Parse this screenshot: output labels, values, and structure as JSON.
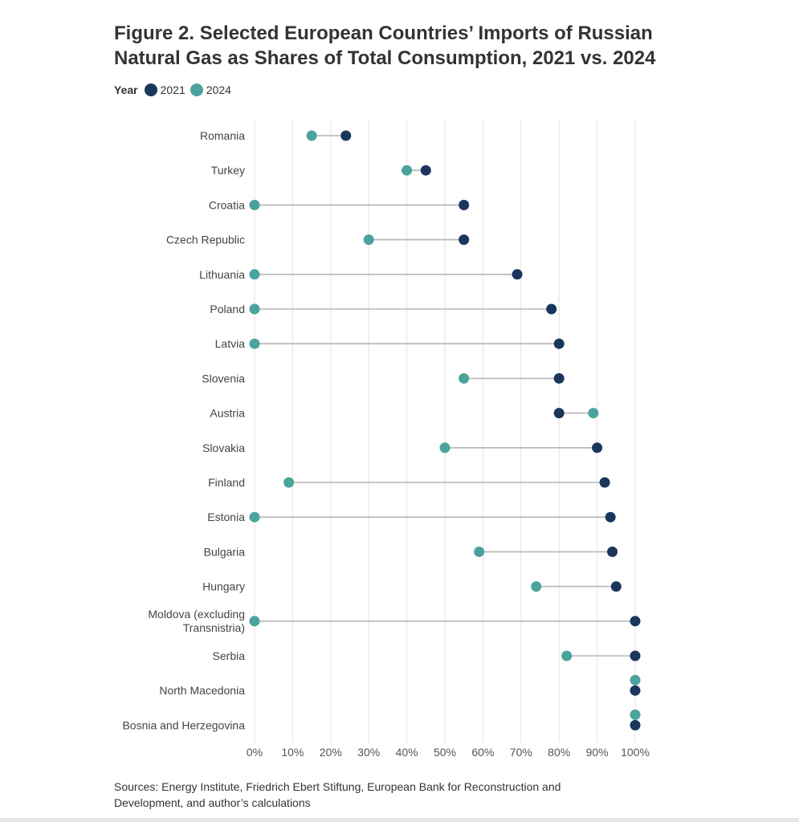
{
  "title_lines": [
    "Figure 2. Selected European Countries’ Imports of Russian",
    "Natural Gas as Shares of Total Consumption, 2021 vs. 2024"
  ],
  "legend": {
    "title": "Year",
    "items": [
      {
        "label": "2021",
        "color": "#1a365d"
      },
      {
        "label": "2024",
        "color": "#4aa39c"
      }
    ]
  },
  "chart_data": {
    "type": "dumbbell",
    "title": "Figure 2. Selected European Countries’ Imports of Russian Natural Gas as Shares of Total Consumption, 2021 vs. 2024",
    "xlabel": "",
    "ylabel": "",
    "xlim": [
      0,
      100
    ],
    "x_ticks": [
      0,
      10,
      20,
      30,
      40,
      50,
      60,
      70,
      80,
      90,
      100
    ],
    "x_tick_labels": [
      "0%",
      "10%",
      "20%",
      "30%",
      "40%",
      "50%",
      "60%",
      "70%",
      "80%",
      "90%",
      "100%"
    ],
    "grid": true,
    "legend_position": "top-left",
    "categories": [
      [
        "Romania"
      ],
      [
        "Turkey"
      ],
      [
        "Croatia"
      ],
      [
        "Czech Republic"
      ],
      [
        "Lithuania"
      ],
      [
        "Poland"
      ],
      [
        "Latvia"
      ],
      [
        "Slovenia"
      ],
      [
        "Austria"
      ],
      [
        "Slovakia"
      ],
      [
        "Finland"
      ],
      [
        "Estonia"
      ],
      [
        "Bulgaria"
      ],
      [
        "Hungary"
      ],
      [
        "Moldova (excluding",
        "Transnistria)"
      ],
      [
        "Serbia"
      ],
      [
        "North Macedonia"
      ],
      [
        "Bosnia and Herzegovina"
      ]
    ],
    "series": [
      {
        "name": "2021",
        "color": "#1a365d",
        "values": [
          24,
          45,
          55,
          55,
          69,
          78,
          80,
          80,
          80,
          90,
          92,
          93.5,
          94,
          95,
          100,
          100,
          100,
          100
        ]
      },
      {
        "name": "2024",
        "color": "#4aa39c",
        "values": [
          15,
          40,
          0,
          30,
          0,
          0,
          0,
          55,
          89,
          50,
          9,
          0,
          59,
          74,
          0,
          82,
          100,
          100
        ]
      }
    ]
  },
  "sources_lines": [
    "Sources: Energy Institute, Friedrich Ebert Stiftung, European Bank for Reconstruction and",
    "Development, and author’s calculations"
  ]
}
